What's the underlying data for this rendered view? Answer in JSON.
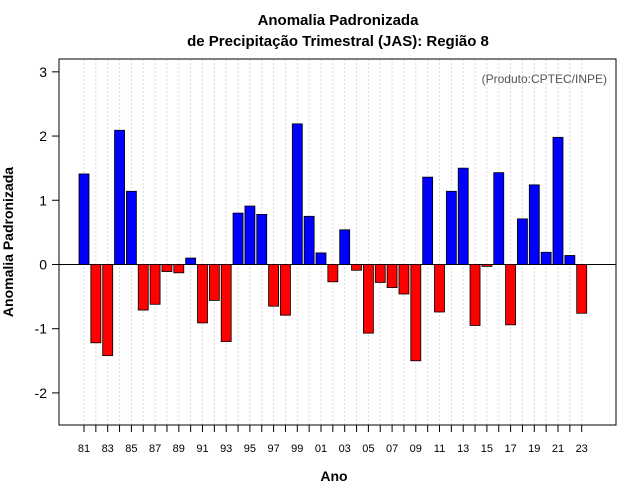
{
  "chart_data": {
    "type": "bar",
    "title": "Anomalia Padronizada",
    "subtitle": "de Precipitação Trimestral (JAS): Região 8",
    "xlabel": "Ano",
    "ylabel": "Anomalia Padronizada",
    "annotation": "(Produto:CPTEC/INPE)",
    "ylim": [
      -2.5,
      3.2
    ],
    "yticks": [
      -2,
      -1,
      0,
      1,
      2,
      3
    ],
    "xtick_labels": [
      "81",
      "83",
      "85",
      "87",
      "89",
      "91",
      "93",
      "95",
      "97",
      "99",
      "01",
      "03",
      "05",
      "07",
      "09",
      "11",
      "13",
      "15",
      "17",
      "19",
      "21",
      "23"
    ],
    "categories": [
      "1981",
      "1982",
      "1983",
      "1984",
      "1985",
      "1986",
      "1987",
      "1988",
      "1989",
      "1990",
      "1991",
      "1992",
      "1993",
      "1994",
      "1995",
      "1996",
      "1997",
      "1998",
      "1999",
      "2000",
      "2001",
      "2002",
      "2003",
      "2004",
      "2005",
      "2006",
      "2007",
      "2008",
      "2009",
      "2010",
      "2011",
      "2012",
      "2013",
      "2014",
      "2015",
      "2016",
      "2017",
      "2018",
      "2019",
      "2020",
      "2021",
      "2022",
      "2023"
    ],
    "values": [
      1.41,
      -1.22,
      -1.42,
      2.09,
      1.14,
      -0.71,
      -0.62,
      -0.11,
      -0.13,
      0.1,
      -0.91,
      -0.56,
      -1.2,
      0.8,
      0.91,
      0.78,
      -0.65,
      -0.79,
      2.19,
      0.75,
      0.18,
      -0.27,
      0.54,
      -0.09,
      -1.07,
      -0.28,
      -0.36,
      -0.46,
      -1.5,
      1.36,
      -0.74,
      1.14,
      1.5,
      -0.95,
      -0.03,
      1.43,
      -0.94,
      0.71,
      1.24,
      0.19,
      1.98,
      0.14,
      -0.76
    ],
    "colors": {
      "positive": "#0000ff",
      "negative": "#ff0000",
      "grid": "#d9d9d9",
      "axis": "#000000",
      "annotation": "#555555"
    }
  }
}
